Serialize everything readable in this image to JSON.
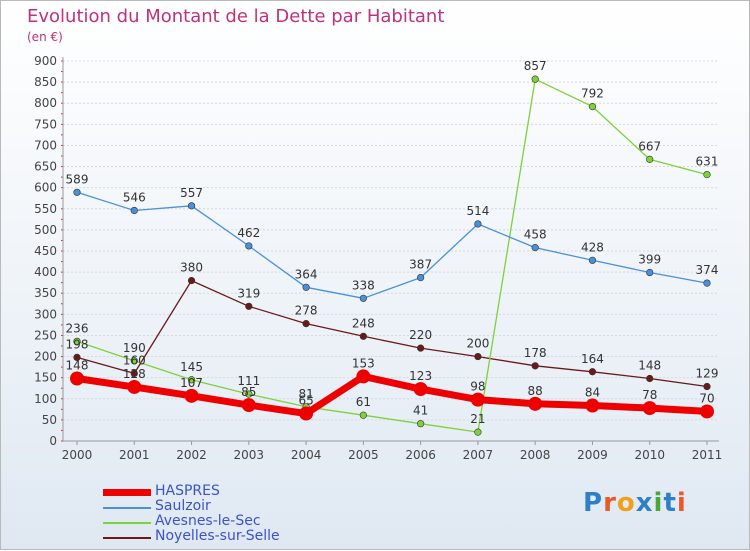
{
  "header": {
    "title": "Evolution du Montant de la Dette par Habitant",
    "subtitle": "(en €)"
  },
  "logo": {
    "text": "Proxiti",
    "colors": [
      "#2f7fc6",
      "#e85a2a",
      "#f2a01b",
      "#2f7fc6",
      "#4aa63b",
      "#2f7fc6",
      "#e85a2a"
    ]
  },
  "chart_data": {
    "type": "line",
    "title": "Evolution du Montant de la Dette par Habitant",
    "subtitle": "(en €)",
    "x": [
      "2000",
      "2001",
      "2002",
      "2003",
      "2004",
      "2005",
      "2006",
      "2007",
      "2008",
      "2009",
      "2010",
      "2011"
    ],
    "yticks": [
      "0",
      "50",
      "100",
      "150",
      "200",
      "250",
      "300",
      "350",
      "400",
      "450",
      "500",
      "550",
      "600",
      "650",
      "700",
      "750",
      "800",
      "850",
      "900"
    ],
    "ylim": [
      0,
      900
    ],
    "grid": "horizontal",
    "legend_placement": "bottom-left",
    "series": [
      {
        "name": "HASPRES",
        "color": "#ee0000",
        "values": [
          148,
          128,
          107,
          85,
          65,
          153,
          123,
          98,
          88,
          84,
          78,
          70
        ]
      },
      {
        "name": "Saulzoir",
        "color": "#4a90d9",
        "values": [
          589,
          546,
          557,
          462,
          364,
          338,
          387,
          514,
          458,
          428,
          399,
          374
        ]
      },
      {
        "name": "Avesnes-le-Sec",
        "color": "#7ed13a",
        "values": [
          236,
          190,
          145,
          111,
          81,
          61,
          41,
          21,
          857,
          792,
          667,
          631
        ]
      },
      {
        "name": "Noyelles-sur-Selle",
        "color": "#6b1a1a",
        "values": [
          198,
          160,
          380,
          319,
          278,
          248,
          220,
          200,
          178,
          164,
          148,
          129
        ]
      }
    ],
    "data_labels": [
      [
        "148",
        "128",
        "107",
        "85",
        "65",
        "153",
        "123",
        "98",
        "88",
        "84",
        "78",
        "70"
      ],
      [
        "589",
        "546",
        "557",
        "462",
        "364",
        "338",
        "387",
        "514",
        "458",
        "428",
        "399",
        "374"
      ],
      [
        "236",
        "190",
        "145",
        "111",
        "81",
        "61",
        "41",
        "21",
        "857",
        "792",
        "667",
        "631"
      ],
      [
        "198",
        "160",
        "380",
        "319",
        "278",
        "248",
        "220",
        "200",
        "178",
        "164",
        "148",
        "129"
      ]
    ]
  }
}
